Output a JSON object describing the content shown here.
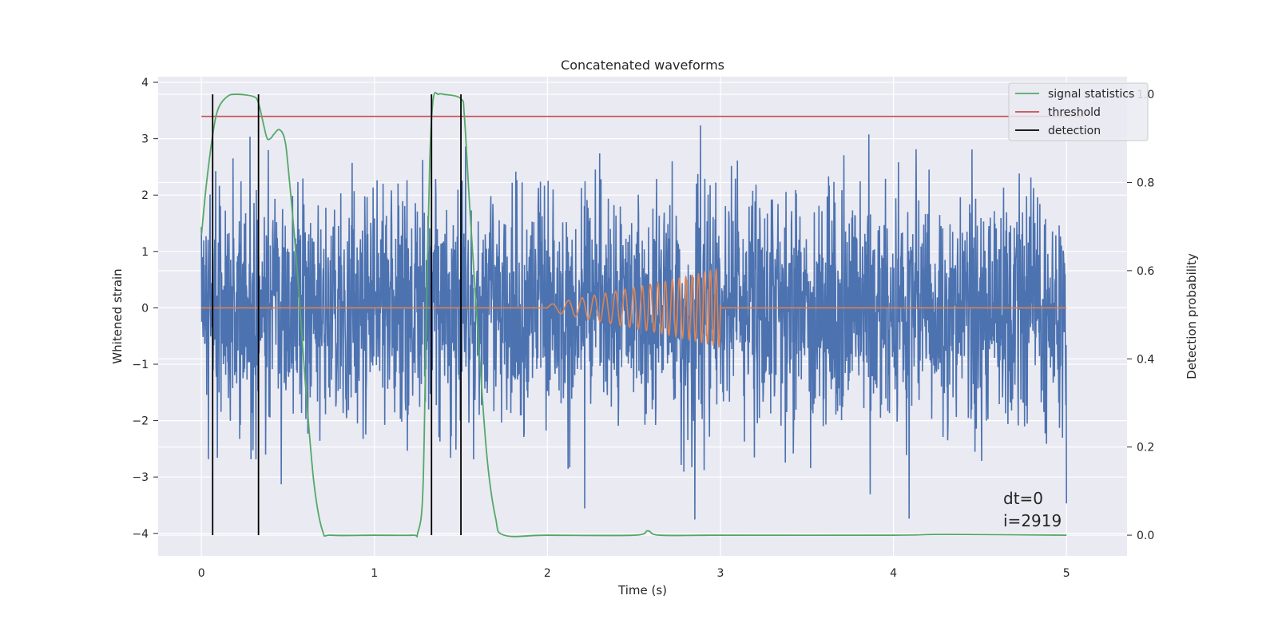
{
  "chart_data": {
    "type": "line",
    "title": "Concatenated waveforms",
    "xlabel": "Time (s)",
    "ylabel": "Whitened strain",
    "y2label": "Detection probability",
    "xlim": [
      -0.25,
      5.35
    ],
    "ylim": [
      -4.4,
      4.1
    ],
    "y2lim": [
      -0.047,
      1.04
    ],
    "xticks": [
      0,
      1,
      2,
      3,
      4,
      5
    ],
    "xtick_labels": [
      "0",
      "1",
      "2",
      "3",
      "4",
      "5"
    ],
    "yticks": [
      -4,
      -3,
      -2,
      -1,
      0,
      1,
      2,
      3,
      4
    ],
    "ytick_labels": [
      "−4",
      "−3",
      "−2",
      "−1",
      "0",
      "1",
      "2",
      "3",
      "4"
    ],
    "y2ticks": [
      0.0,
      0.2,
      0.4,
      0.6,
      0.8,
      1.0
    ],
    "y2tick_labels": [
      "0.0",
      "0.2",
      "0.4",
      "0.6",
      "0.8",
      "1.0"
    ],
    "grid": true,
    "legend_position": "top-right",
    "colors": {
      "noise": "#4c72b0",
      "waveform": "#dd8452",
      "signal_statistics": "#55a868",
      "threshold": "#c44e52",
      "detection": "#000000",
      "background": "#eaeaf2",
      "grid": "#ffffff"
    },
    "series": [
      {
        "name": "",
        "axis": "left",
        "description_role": "whitened strain noise",
        "x_range": [
          0,
          5
        ],
        "envelope_typical": [
          -1.3,
          1.3
        ],
        "envelope_peak": [
          -4.0,
          3.7
        ]
      },
      {
        "name": "",
        "axis": "left",
        "description_role": "injected chirp waveform",
        "x": [
          0,
          2.0,
          2.1,
          2.2,
          2.3,
          2.4,
          2.5,
          2.6,
          2.7,
          2.8,
          2.9,
          2.95,
          3.0,
          5.0
        ],
        "amplitude": [
          0,
          0.05,
          0.12,
          0.18,
          0.24,
          0.3,
          0.36,
          0.42,
          0.48,
          0.55,
          0.62,
          0.66,
          0.7,
          0
        ]
      },
      {
        "name": "signal statistics",
        "axis": "right",
        "x": [
          0,
          0.03,
          0.07,
          0.1,
          0.15,
          0.2,
          0.3,
          0.33,
          0.36,
          0.38,
          0.4,
          0.42,
          0.45,
          0.48,
          0.5,
          0.55,
          0.6,
          0.65,
          0.7,
          0.75,
          1.0,
          1.22,
          1.25,
          1.28,
          1.3,
          1.32,
          1.34,
          1.37,
          1.4,
          1.5,
          1.52,
          1.55,
          1.6,
          1.65,
          1.7,
          1.75,
          2.0,
          2.5,
          2.58,
          2.65,
          3.0,
          4.0,
          4.3,
          5.0
        ],
        "y": [
          0.68,
          0.8,
          0.92,
          0.97,
          0.995,
          1.0,
          0.995,
          0.98,
          0.93,
          0.9,
          0.9,
          0.91,
          0.92,
          0.9,
          0.84,
          0.62,
          0.35,
          0.12,
          0.01,
          0.0,
          0.0,
          0.0,
          0.005,
          0.1,
          0.5,
          0.85,
          0.99,
          1.0,
          1.0,
          0.99,
          0.95,
          0.75,
          0.45,
          0.18,
          0.04,
          0.0,
          0.0,
          0.0,
          0.01,
          0.0,
          0.0,
          0.0,
          0.002,
          0.0
        ]
      },
      {
        "name": "threshold",
        "axis": "right",
        "x": [
          0,
          5.1
        ],
        "y": [
          0.95,
          0.95
        ]
      },
      {
        "name": "detection",
        "axis": "right",
        "x_positions": [
          0.065,
          0.33,
          1.33,
          1.5
        ],
        "y_range": [
          0.0,
          1.0
        ]
      }
    ],
    "annotations": [
      "dt=0",
      "i=2919"
    ]
  }
}
